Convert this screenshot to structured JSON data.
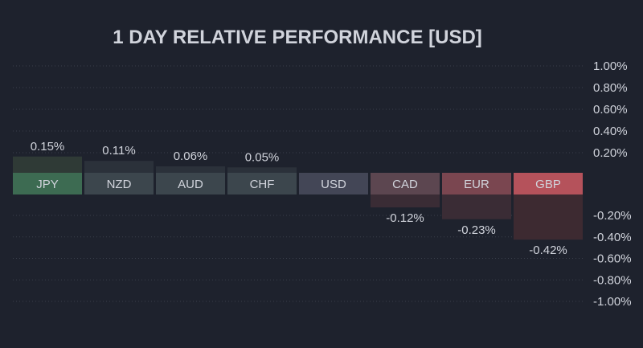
{
  "chart_data": {
    "type": "bar",
    "title": "1 DAY RELATIVE PERFORMANCE  [USD]",
    "xlabel": "",
    "ylabel": "",
    "categories": [
      "JPY",
      "NZD",
      "AUD",
      "CHF",
      "USD",
      "CAD",
      "EUR",
      "GBP"
    ],
    "values": [
      0.15,
      0.11,
      0.06,
      0.05,
      0,
      -0.12,
      -0.23,
      -0.42
    ],
    "value_labels": [
      "0.15%",
      "0.11%",
      "0.06%",
      "0.05%",
      "",
      "-0.12%",
      "-0.23%",
      "-0.42%"
    ],
    "ylim": [
      -1.0,
      1.0
    ],
    "y_ticks_positive": [
      "1.00%",
      "0.80%",
      "0.60%",
      "0.40%",
      "0.20%"
    ],
    "y_ticks_negative": [
      "-0.20%",
      "-0.40%",
      "-0.60%",
      "-0.80%",
      "-1.00%"
    ],
    "grid": true,
    "axis_position": "right",
    "colors": {
      "background": "#1e222d",
      "positive_strong": "#3d6b52",
      "positive_weak": "#3c464d",
      "neutral": "#434656",
      "negative_weak": "#5c4650",
      "negative_mid": "#7a4650",
      "negative_strong": "#b5525b",
      "text": "#d1d4dc",
      "grid": "#3a3f4b"
    }
  }
}
